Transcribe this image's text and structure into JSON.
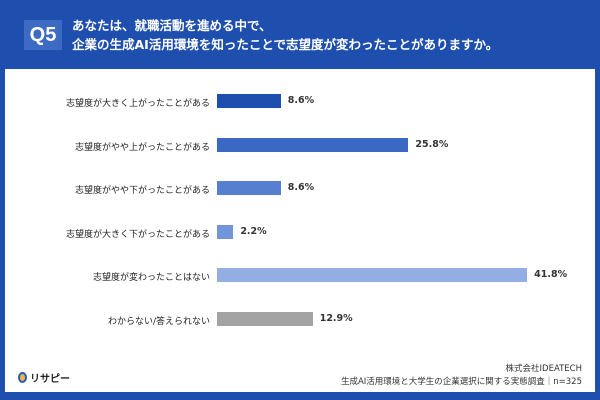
{
  "header": {
    "badge": "Q5",
    "question_line1": "あなたは、就職活動を進める中で、",
    "question_line2": "企業の生成AI活用環境を知ったことで志望度が変わったことがありますか。"
  },
  "chart_data": {
    "type": "bar",
    "orientation": "horizontal",
    "unit": "%",
    "categories": [
      "志望度が大きく上がったことがある",
      "志望度がやや上がったことがある",
      "志望度がやや下がったことがある",
      "志望度が大きく下がったことがある",
      "志望度が変わったことはない",
      "わからない/答えられない"
    ],
    "values": [
      8.6,
      25.8,
      8.6,
      2.2,
      41.8,
      12.9
    ],
    "labels": [
      "8.6%",
      "25.8%",
      "8.6%",
      "2.2%",
      "41.8%",
      "12.9%"
    ],
    "colors": [
      "#1f4fae",
      "#3a69c4",
      "#5680cf",
      "#7396d8",
      "#92aee2",
      "#a3a3a3"
    ]
  },
  "footer": {
    "logo": "リサピー",
    "company": "株式会社IDEATECH",
    "source": "生成AI活用環境と大学生の企業選択に関する実態調査｜n=325"
  }
}
